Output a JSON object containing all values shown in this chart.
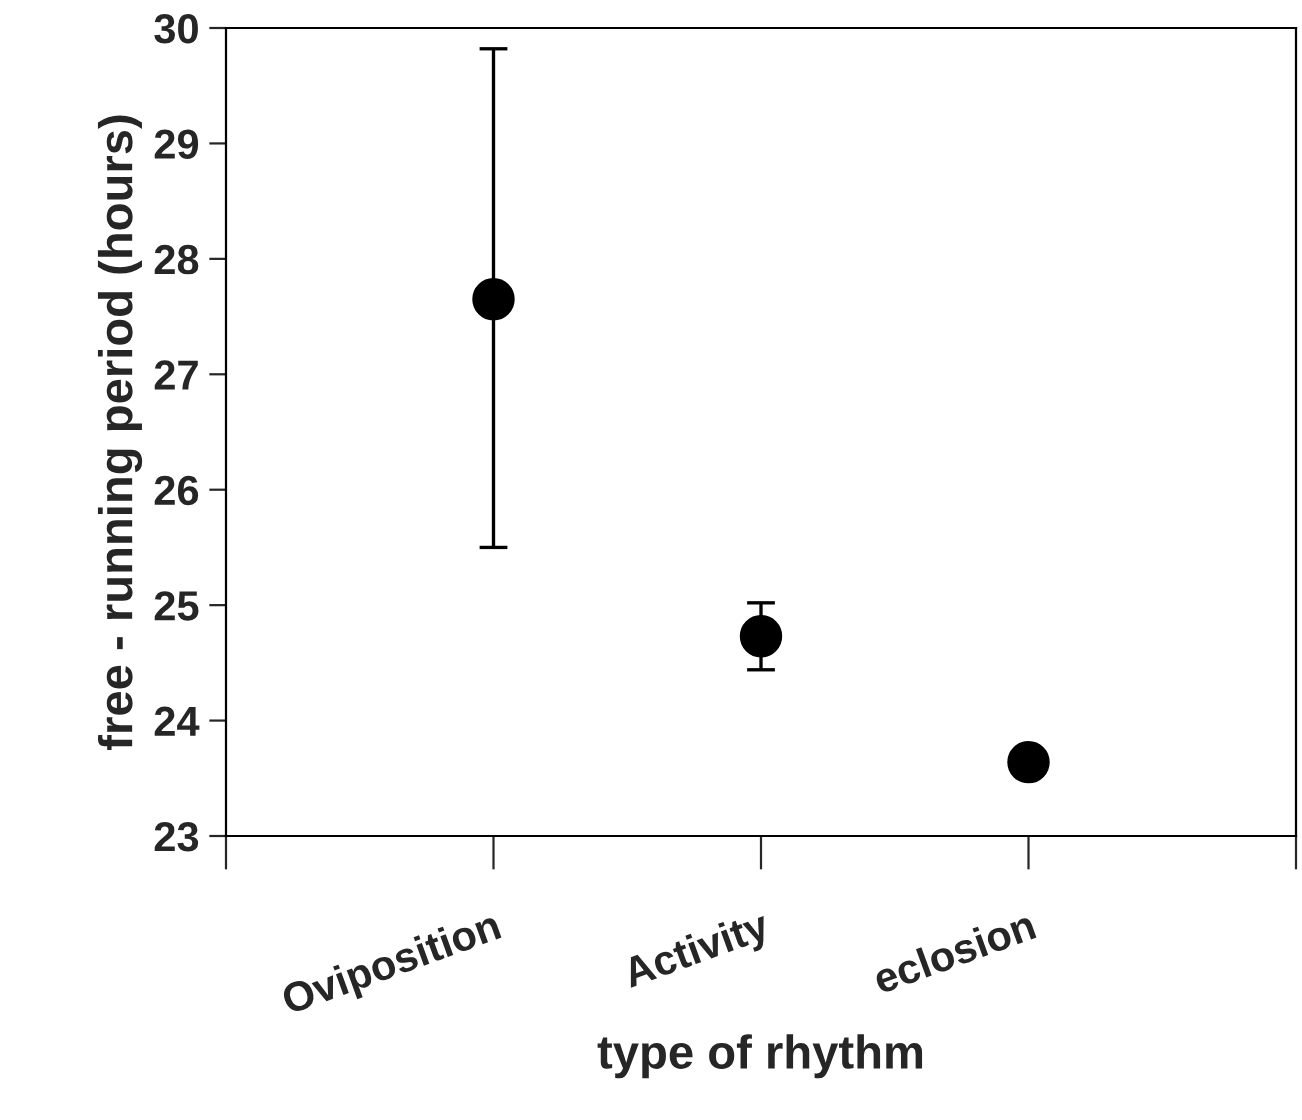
{
  "chart_data": {
    "type": "scatter",
    "xlabel": "type of rhythm",
    "ylabel": "free - running period (hours)",
    "categories": [
      "Oviposition",
      "Activity",
      "eclosion"
    ],
    "values": [
      27.65,
      24.73,
      23.64
    ],
    "errors": [
      [
        25.5,
        29.82
      ],
      [
        24.44,
        25.02
      ],
      null
    ],
    "color": "#000000",
    "marker": "circle",
    "ylim": [
      23,
      30
    ],
    "yticks": [
      23,
      24,
      25,
      26,
      27,
      28,
      29,
      30
    ],
    "grid": false
  }
}
